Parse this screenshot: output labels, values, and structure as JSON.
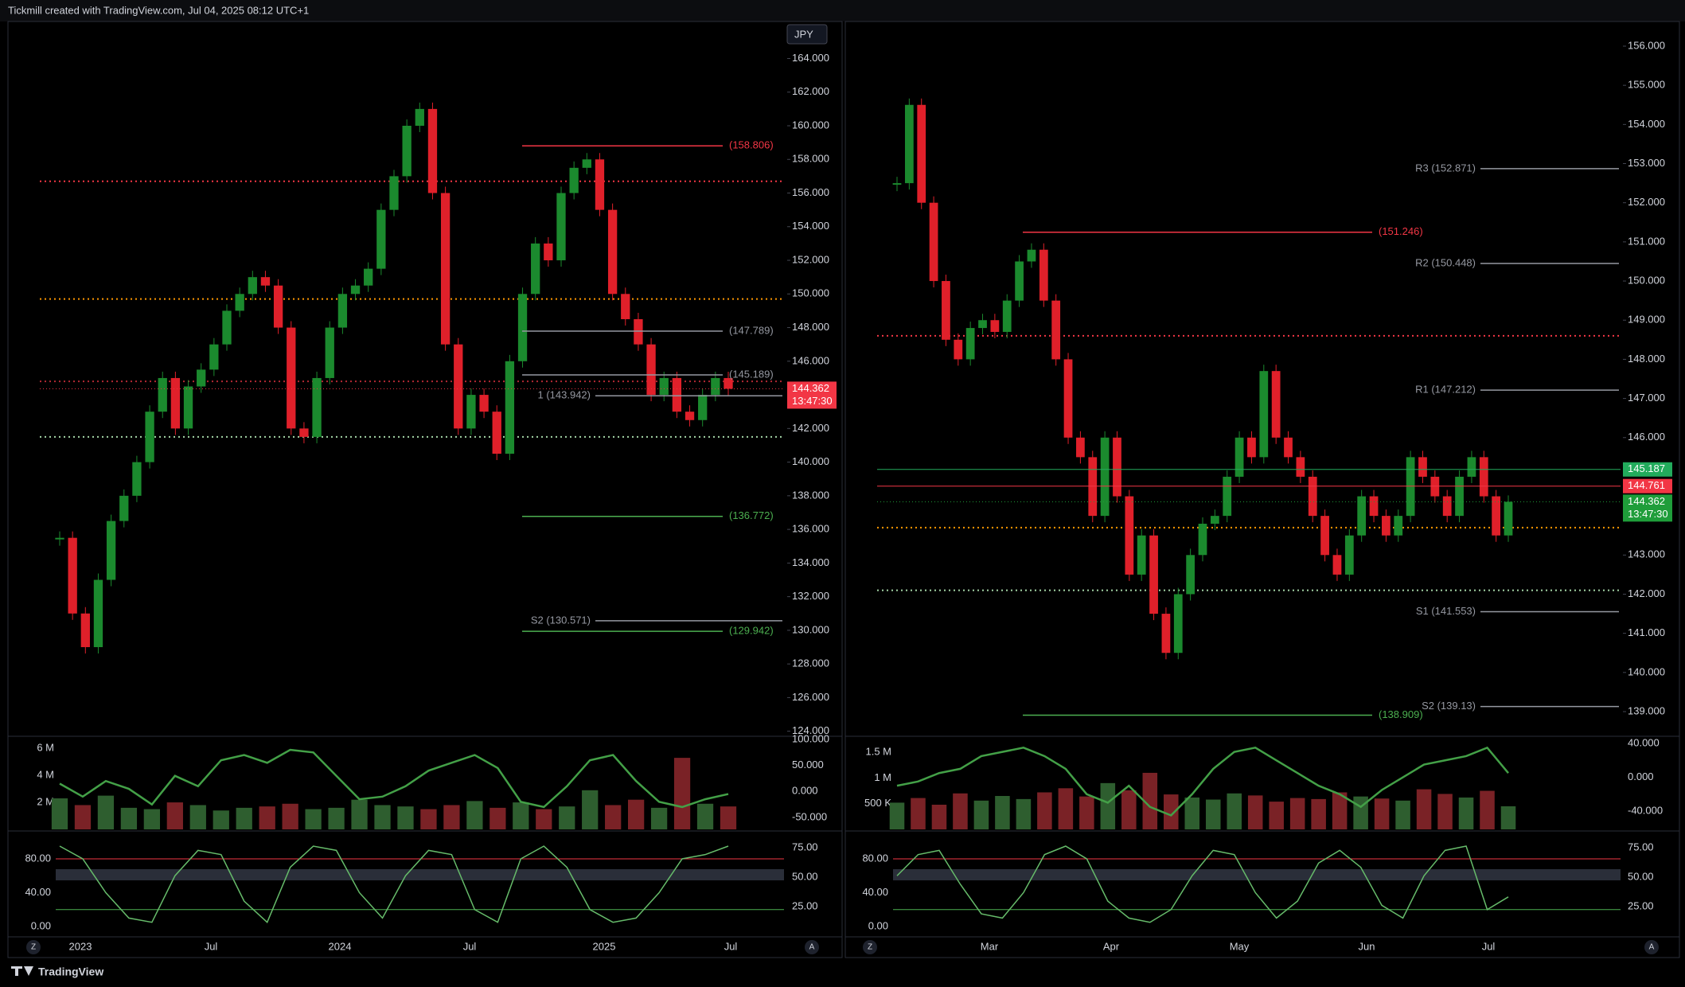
{
  "header": {
    "title": "Tickmill created with TradingView.com, Jul 04, 2025 08:12 UTC+1"
  },
  "footer": {
    "brand": "TradingView"
  },
  "panes": [
    {
      "currency": "JPY",
      "price_axis": {
        "ylim": [
          123.7,
          166.2
        ],
        "ticks": [
          {
            "value": 124,
            "label": "124.000"
          },
          {
            "value": 126,
            "label": "126.000"
          },
          {
            "value": 128,
            "label": "128.000"
          },
          {
            "value": 130,
            "label": "130.000"
          },
          {
            "value": 132,
            "label": "132.000"
          },
          {
            "value": 134,
            "label": "134.000"
          },
          {
            "value": 136,
            "label": "136.000"
          },
          {
            "value": 138,
            "label": "138.000"
          },
          {
            "value": 140,
            "label": "140.000"
          },
          {
            "value": 142,
            "label": "142.000"
          },
          {
            "value": 144,
            "label": "144.000"
          },
          {
            "value": 146,
            "label": "146.000"
          },
          {
            "value": 148,
            "label": "148.000"
          },
          {
            "value": 150,
            "label": "150.000"
          },
          {
            "value": 152,
            "label": "152.000"
          },
          {
            "value": 154,
            "label": "154.000"
          },
          {
            "value": 156,
            "label": "156.000"
          },
          {
            "value": 158,
            "label": "158.000"
          },
          {
            "value": 160,
            "label": "160.000"
          },
          {
            "value": 162,
            "label": "162.000"
          },
          {
            "value": 164,
            "label": "164.000"
          }
        ]
      },
      "closes": [
        135.5,
        131,
        129,
        133,
        136.5,
        138,
        140,
        143,
        145,
        142,
        144.5,
        145.5,
        147,
        149,
        150,
        151,
        150.5,
        148,
        142,
        141.5,
        145,
        148,
        150,
        150.5,
        151.5,
        155,
        157,
        160,
        161,
        156,
        147,
        142,
        144,
        143,
        140.5,
        146,
        150,
        153,
        152,
        156,
        157.5,
        158,
        155,
        150,
        148.5,
        147,
        144,
        145,
        143,
        142.5,
        144,
        145,
        144.362
      ],
      "levels": [
        {
          "value": 158.806,
          "label": "(158.806)",
          "color": "#f23645"
        },
        {
          "value": 147.789,
          "label": "(147.789)",
          "color": "#9598a1"
        },
        {
          "value": 145.189,
          "label": "(145.189)",
          "color": "#9598a1"
        },
        {
          "value": 143.942,
          "label": "1 (143.942)",
          "color": "#9598a1"
        },
        {
          "value": 136.772,
          "label": "(136.772)",
          "color": "#4caf50"
        },
        {
          "value": 130.571,
          "label": "S2 (130.571)",
          "color": "#9598a1"
        },
        {
          "value": 129.942,
          "label": "(129.942)",
          "color": "#4caf50"
        }
      ],
      "dotted_levels": [
        {
          "value": 156.7,
          "color": "#f23645"
        },
        {
          "value": 149.7,
          "color": "#ff9800"
        },
        {
          "value": 144.8,
          "color": "#b22833"
        },
        {
          "value": 141.5,
          "color": "#a5d6a7"
        }
      ],
      "price_tags": [
        {
          "value": 144.362,
          "label": "144.362",
          "countdown": "13:47:30",
          "color": "#f23645"
        }
      ],
      "time_labels": [
        "2023",
        "Jul",
        "2024",
        "Jul",
        "2025",
        "Jul"
      ],
      "volume": {
        "ylim": [
          0,
          6.78
        ],
        "ticks": [
          {
            "value": 6,
            "label": "6 M"
          },
          {
            "value": 4,
            "label": "4 M"
          },
          {
            "value": 2,
            "label": "2 M"
          }
        ],
        "values": [
          2.3,
          1.8,
          2.5,
          1.6,
          1.5,
          2,
          1.8,
          1.4,
          1.6,
          1.7,
          1.9,
          1.5,
          1.6,
          2.2,
          1.8,
          1.7,
          1.5,
          1.8,
          2.1,
          1.6,
          2,
          1.5,
          1.7,
          2.9,
          1.8,
          2.2,
          1.6,
          5.3,
          1.9,
          1.7
        ]
      },
      "volume_osc": {
        "ylim": [
          -73,
          103
        ],
        "ticks": [
          {
            "value": 100,
            "label": "100.000"
          },
          {
            "value": 50,
            "label": "50.000"
          },
          {
            "value": 0,
            "label": "0.000"
          },
          {
            "value": -50,
            "label": "-50.000"
          }
        ],
        "values": [
          15,
          -10,
          20,
          5,
          -25,
          30,
          10,
          60,
          70,
          55,
          80,
          75,
          30,
          -15,
          -10,
          10,
          40,
          55,
          70,
          45,
          -20,
          -30,
          10,
          60,
          70,
          20,
          -20,
          -30,
          -15,
          -5
        ],
        "color": "#43a047"
      },
      "stoch": {
        "ylim": [
          -12.2,
          111
        ],
        "ticks": [
          {
            "value": 80,
            "label": "80.00"
          },
          {
            "value": 40,
            "label": "40.00"
          },
          {
            "value": 0,
            "label": "0.00"
          }
        ],
        "y2lim": [
          -0.7,
          87.8
        ],
        "y2ticks": [
          {
            "value": 75,
            "label": "75.00"
          },
          {
            "value": 50,
            "label": "50.00"
          },
          {
            "value": 25,
            "label": "25.00"
          }
        ],
        "levels": [
          {
            "value": 80,
            "color": "#f23645"
          },
          {
            "value": 20,
            "color": "#4caf50"
          }
        ],
        "values": [
          95,
          80,
          40,
          10,
          5,
          60,
          90,
          85,
          30,
          5,
          70,
          95,
          90,
          40,
          10,
          60,
          90,
          85,
          20,
          5,
          80,
          95,
          70,
          20,
          5,
          10,
          40,
          80,
          85,
          95
        ],
        "color": "#66bb6a"
      },
      "buttons": [
        "Z",
        "A"
      ]
    },
    {
      "price_axis": {
        "ylim": [
          138.37,
          156.63
        ],
        "ticks": [
          {
            "value": 139,
            "label": "139.000"
          },
          {
            "value": 140,
            "label": "140.000"
          },
          {
            "value": 141,
            "label": "141.000"
          },
          {
            "value": 142,
            "label": "142.000"
          },
          {
            "value": 143,
            "label": "143.000"
          },
          {
            "value": 146,
            "label": "146.000"
          },
          {
            "value": 147,
            "label": "147.000"
          },
          {
            "value": 148,
            "label": "148.000"
          },
          {
            "value": 149,
            "label": "149.000"
          },
          {
            "value": 150,
            "label": "150.000"
          },
          {
            "value": 151,
            "label": "151.000"
          },
          {
            "value": 152,
            "label": "152.000"
          },
          {
            "value": 153,
            "label": "153.000"
          },
          {
            "value": 154,
            "label": "154.000"
          },
          {
            "value": 155,
            "label": "155.000"
          },
          {
            "value": 156,
            "label": "156.000"
          }
        ]
      },
      "closes": [
        152.5,
        154.5,
        152,
        150,
        148.5,
        148,
        148.8,
        149,
        148.7,
        149.5,
        150.5,
        150.8,
        149.5,
        148,
        146,
        145.5,
        144,
        146,
        144.5,
        142.5,
        143.5,
        141.5,
        140.5,
        142,
        143,
        143.8,
        144,
        145,
        146,
        145.5,
        147.7,
        146,
        145.5,
        145,
        144,
        143,
        142.5,
        143.5,
        144.5,
        144,
        143.5,
        144,
        145.5,
        145,
        144.5,
        144,
        145,
        145.5,
        144.5,
        143.5,
        144.36
      ],
      "levels": [
        {
          "value": 152.871,
          "label": "R3 (152.871)",
          "color": "#9598a1"
        },
        {
          "value": 151.246,
          "label": "(151.246)",
          "color": "#f23645"
        },
        {
          "value": 150.448,
          "label": "R2 (150.448)",
          "color": "#9598a1"
        },
        {
          "value": 147.212,
          "label": "R1 (147.212)",
          "color": "#9598a1"
        },
        {
          "value": 141.553,
          "label": "S1 (141.553)",
          "color": "#9598a1"
        },
        {
          "value": 139.13,
          "label": "S2 (139.13)",
          "color": "#9598a1"
        },
        {
          "value": 138.909,
          "label": "(138.909)",
          "color": "#4caf50"
        }
      ],
      "dotted_levels": [
        {
          "value": 148.6,
          "color": "#f23645"
        },
        {
          "value": 143.7,
          "color": "#ff9800"
        },
        {
          "value": 142.1,
          "color": "#a5d6a7"
        }
      ],
      "price_tags": [
        {
          "value": 145.187,
          "label": "145.187",
          "color": "#22ab5c"
        },
        {
          "value": 144.761,
          "label": "144.761",
          "color": "#f23645"
        },
        {
          "value": 144.362,
          "label": "144.362",
          "countdown": "13:47:30",
          "color": "#1f9d3a"
        }
      ],
      "time_labels": [
        "Mar",
        "Apr",
        "May",
        "Jun",
        "Jul"
      ],
      "volume": {
        "ylim": [
          0,
          1780000
        ],
        "ticks": [
          {
            "value": 1500000,
            "label": "1.5 M"
          },
          {
            "value": 1000000,
            "label": "1 M"
          },
          {
            "value": 500000,
            "label": "500 K"
          }
        ],
        "values": [
          520000,
          610000,
          480000,
          700000,
          560000,
          650000,
          590000,
          720000,
          800000,
          640000,
          900000,
          760000,
          1100000,
          680000,
          620000,
          580000,
          700000,
          660000,
          540000,
          610000,
          590000,
          720000,
          640000,
          600000,
          560000,
          780000,
          690000,
          620000,
          750000,
          450000
        ]
      },
      "volume_osc": {
        "ylim": [
          -61.6,
          46.6
        ],
        "ticks": [
          {
            "value": 40,
            "label": "40.000"
          },
          {
            "value": 0,
            "label": "0.000"
          },
          {
            "value": -40,
            "label": "-40.000"
          }
        ],
        "values": [
          -10,
          -5,
          5,
          10,
          25,
          30,
          35,
          25,
          10,
          -20,
          -30,
          -10,
          -35,
          -45,
          -20,
          10,
          30,
          35,
          20,
          5,
          -10,
          -20,
          -35,
          -15,
          0,
          15,
          20,
          25,
          35,
          5
        ],
        "color": "#43a047"
      },
      "stoch": {
        "ylim": [
          -12.2,
          111
        ],
        "ticks": [
          {
            "value": 80,
            "label": "80.00"
          },
          {
            "value": 40,
            "label": "40.00"
          },
          {
            "value": 0,
            "label": "0.00"
          }
        ],
        "y2lim": [
          -0.7,
          87.8
        ],
        "y2ticks": [
          {
            "value": 75,
            "label": "75.00"
          },
          {
            "value": 50,
            "label": "50.00"
          },
          {
            "value": 25,
            "label": "25.00"
          }
        ],
        "levels": [
          {
            "value": 80,
            "color": "#f23645"
          },
          {
            "value": 20,
            "color": "#4caf50"
          }
        ],
        "values": [
          60,
          85,
          90,
          50,
          15,
          10,
          40,
          85,
          95,
          80,
          30,
          10,
          5,
          20,
          60,
          90,
          85,
          40,
          10,
          30,
          75,
          90,
          70,
          25,
          10,
          60,
          90,
          95,
          20,
          35
        ],
        "color": "#66bb6a"
      },
      "buttons": [
        "Z",
        "A"
      ]
    }
  ]
}
